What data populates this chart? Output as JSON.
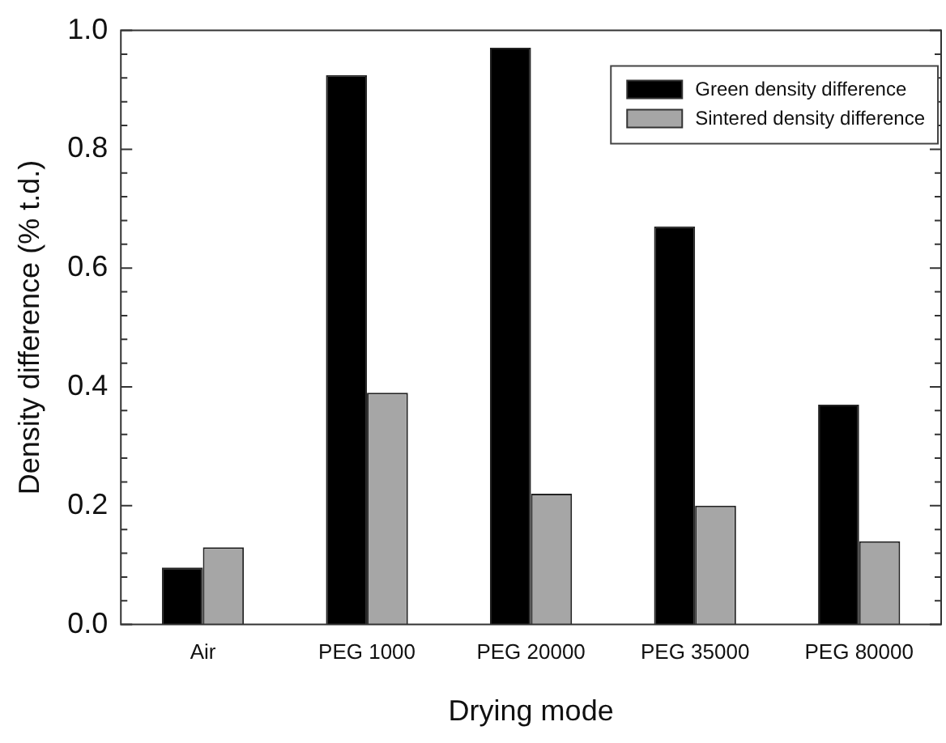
{
  "chart_data": {
    "type": "bar",
    "xlabel": "Drying mode",
    "ylabel": "Density difference (% t.d.)",
    "categories": [
      "Air",
      "PEG 1000",
      "PEG 20000",
      "PEG 35000",
      "PEG 80000"
    ],
    "series": [
      {
        "name": "Green density difference",
        "color": "#000000",
        "values": [
          0.096,
          0.925,
          0.971,
          0.67,
          0.37
        ]
      },
      {
        "name": "Sintered density difference",
        "color": "#a6a6a6",
        "values": [
          0.13,
          0.39,
          0.22,
          0.2,
          0.14
        ]
      }
    ],
    "ylim": [
      0,
      1
    ],
    "yticks": [
      {
        "value": 0,
        "label": "0.0"
      },
      {
        "value": 0.04,
        "label": null
      },
      {
        "value": 0.08,
        "label": null
      },
      {
        "value": 0.12,
        "label": null
      },
      {
        "value": 0.16,
        "label": null
      },
      {
        "value": 0.2,
        "label": "0.2"
      },
      {
        "value": 0.24,
        "label": null
      },
      {
        "value": 0.28,
        "label": null
      },
      {
        "value": 0.32,
        "label": null
      },
      {
        "value": 0.36,
        "label": null
      },
      {
        "value": 0.4,
        "label": "0.4"
      },
      {
        "value": 0.44,
        "label": null
      },
      {
        "value": 0.48,
        "label": null
      },
      {
        "value": 0.52,
        "label": null
      },
      {
        "value": 0.56,
        "label": null
      },
      {
        "value": 0.6,
        "label": "0.6"
      },
      {
        "value": 0.64,
        "label": null
      },
      {
        "value": 0.68,
        "label": null
      },
      {
        "value": 0.72,
        "label": null
      },
      {
        "value": 0.76,
        "label": null
      },
      {
        "value": 0.8,
        "label": "0.8"
      },
      {
        "value": 0.84,
        "label": null
      },
      {
        "value": 0.88,
        "label": null
      },
      {
        "value": 0.92,
        "label": null
      },
      {
        "value": 0.96,
        "label": null
      },
      {
        "value": 1,
        "label": "1.0"
      }
    ],
    "grid": false,
    "legend": "top right"
  }
}
